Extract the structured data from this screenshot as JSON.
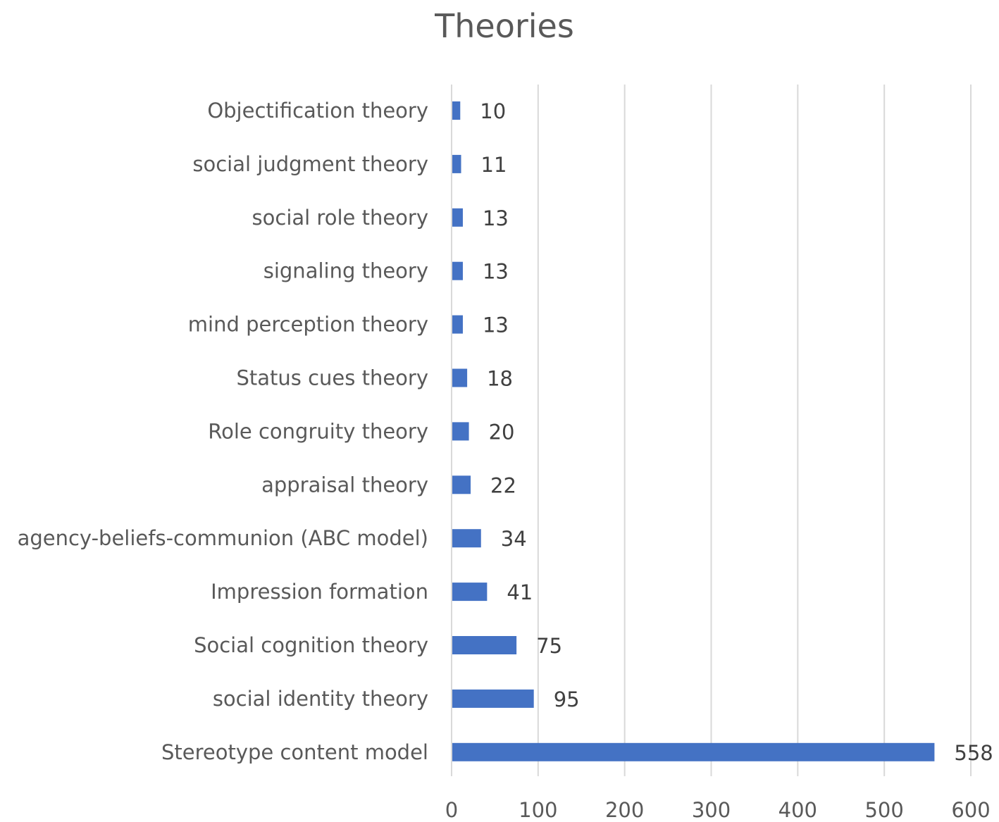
{
  "chart_data": {
    "type": "bar",
    "orientation": "horizontal",
    "title": "Theories",
    "categories": [
      "Objectification theory",
      "social judgment theory",
      "social role theory",
      "signaling theory",
      "mind perception theory",
      "Status cues theory",
      "Role congruity theory",
      "appraisal theory",
      "agency-beliefs-communion (ABC model)",
      "Impression formation",
      "Social cognition theory",
      "social identity theory",
      "Stereotype content model"
    ],
    "values": [
      10,
      11,
      13,
      13,
      13,
      18,
      20,
      22,
      34,
      41,
      75,
      95,
      558
    ],
    "data_labels": [
      "10",
      "11",
      "13",
      "13",
      "13",
      "18",
      "20",
      "22",
      "34",
      "41",
      "75",
      "95",
      "558"
    ],
    "xlabel": "",
    "ylabel": "",
    "xlim": [
      0,
      600
    ],
    "xticks": [
      0,
      100,
      200,
      300,
      400,
      500,
      600
    ],
    "xtick_labels": [
      "0",
      "100",
      "200",
      "300",
      "400",
      "500",
      "600"
    ],
    "grid": "vertical",
    "legend": "none",
    "bar_color": "#4472C4"
  }
}
